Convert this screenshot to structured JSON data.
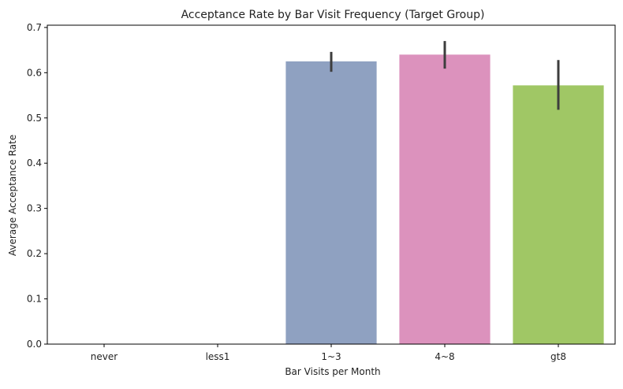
{
  "chart_data": {
    "type": "bar",
    "title": "Acceptance Rate by Bar Visit Frequency (Target Group)",
    "xlabel": "Bar Visits per Month",
    "ylabel": "Average Acceptance Rate",
    "categories": [
      "never",
      "less1",
      "1~3",
      "4~8",
      "gt8"
    ],
    "values": [
      0.0,
      0.0,
      0.625,
      0.64,
      0.572
    ],
    "error_bars": [
      {
        "low": 0.0,
        "high": 0.0
      },
      {
        "low": 0.0,
        "high": 0.0
      },
      {
        "low": 0.602,
        "high": 0.646
      },
      {
        "low": 0.609,
        "high": 0.67
      },
      {
        "low": 0.518,
        "high": 0.628
      }
    ],
    "bar_colors": [
      "#66c2a5",
      "#fc8d62",
      "#8fa1c1",
      "#dc92bd",
      "#a0c765"
    ],
    "ylim": [
      0,
      0.705
    ],
    "yticks": [
      0.0,
      0.1,
      0.2,
      0.3,
      0.4,
      0.5,
      0.6,
      0.7
    ],
    "ytick_labels": [
      "0.0",
      "0.1",
      "0.2",
      "0.3",
      "0.4",
      "0.5",
      "0.6",
      "0.7"
    ],
    "grid": false,
    "legend": "none"
  }
}
